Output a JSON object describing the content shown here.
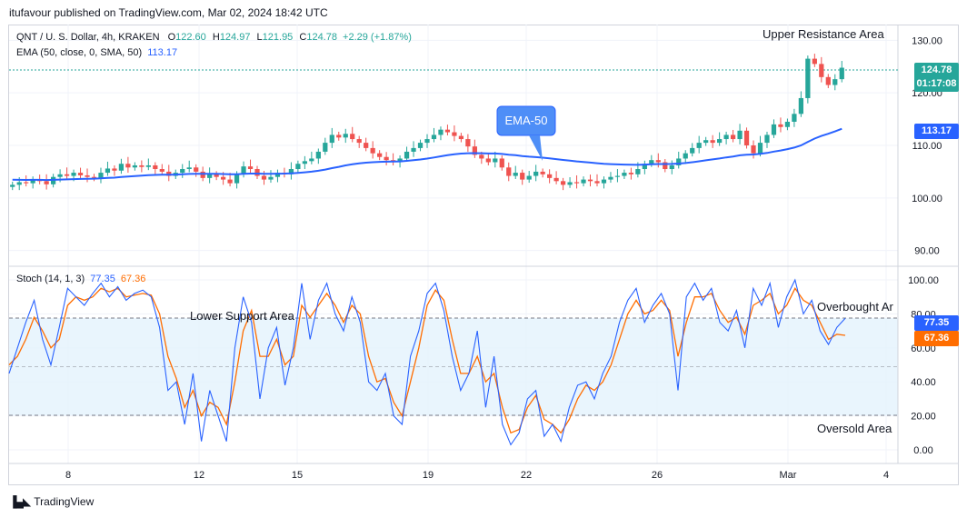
{
  "header": {
    "text": "itufavour published on TradingView.com, Mar 02, 2024 18:42 UTC"
  },
  "legend_main": {
    "symbol": "QNT / U. S. Dollar, 4h, KRAKEN",
    "o_label": "O",
    "o": "122.60",
    "h_label": "H",
    "h": "124.97",
    "l_label": "L",
    "l": "121.95",
    "c_label": "C",
    "c": "124.78",
    "change": "+2.29 (+1.87%)",
    "ema_label": "EMA (50, close, 0, SMA, 50)",
    "ema_value": "113.17"
  },
  "legend_stoch": {
    "label": "Stoch (14, 1, 3)",
    "k": "77.35",
    "d": "67.36"
  },
  "price_badge": {
    "price": "124.78",
    "countdown": "01:17:08"
  },
  "ema_badge": "113.17",
  "stoch_badges": {
    "k": "77.35",
    "d": "67.36"
  },
  "annotations": {
    "upper_resistance": "Upper Resistance Area",
    "lower_support": "Lower Support Area",
    "ema_callout": "EMA-50",
    "overbought": "Overbought Ar",
    "oversold": "Oversold Area"
  },
  "footer": {
    "brand": "TradingView"
  },
  "colors": {
    "up": "#26a69a",
    "down": "#ef5350",
    "ema": "#2962ff",
    "k": "#2962ff",
    "d": "#ff6d00",
    "band": "#e3f2fd",
    "callout": "#4e8ef7"
  },
  "chart_data": [
    {
      "type": "candlestick",
      "title": "QNT / U. S. Dollar, 4h, KRAKEN",
      "x_ticks": [
        "8",
        "12",
        "15",
        "19",
        "22",
        "26",
        "Mar",
        "4"
      ],
      "y_ticks": [
        90,
        100,
        110,
        120,
        130
      ],
      "ylim": [
        87,
        133
      ],
      "grid": true,
      "last_price": 124.78,
      "ema50_last": 113.17,
      "series": [
        {
          "name": "QNT / U. S. Dollar",
          "ohlc_close": [
            102.5,
            103.0,
            102.8,
            103.5,
            103.2,
            102.6,
            104.0,
            104.5,
            104.2,
            104.8,
            104.3,
            104.0,
            103.8,
            104.8,
            105.6,
            105.2,
            106.5,
            105.8,
            106.2,
            105.9,
            106.2,
            105.5,
            105.0,
            104.2,
            104.8,
            105.5,
            105.8,
            105.0,
            103.8,
            104.5,
            104.0,
            103.5,
            102.8,
            104.5,
            106.0,
            105.5,
            104.2,
            103.5,
            104.0,
            104.8,
            104.5,
            105.5,
            106.5,
            107.0,
            107.5,
            108.8,
            110.5,
            112.0,
            111.5,
            112.2,
            111.2,
            110.5,
            109.5,
            108.5,
            107.8,
            107.2,
            106.8,
            107.5,
            108.8,
            109.5,
            110.5,
            111.2,
            112.0,
            113.0,
            112.5,
            111.8,
            111.2,
            109.8,
            108.2,
            107.5,
            106.8,
            107.5,
            105.8,
            104.2,
            104.8,
            103.5,
            104.2,
            105.0,
            104.5,
            103.8,
            103.2,
            102.5,
            103.0,
            102.8,
            103.5,
            103.2,
            102.8,
            103.5,
            104.0,
            104.2,
            104.8,
            104.5,
            105.5,
            106.5,
            107.2,
            106.8,
            105.5,
            106.2,
            107.5,
            108.5,
            109.5,
            110.5,
            111.0,
            110.5,
            111.2,
            112.0,
            111.2,
            112.8,
            110.0,
            108.5,
            110.5,
            112.0,
            114.0,
            113.5,
            114.5,
            116.0,
            119.0,
            126.5,
            125.5,
            123.0,
            121.5,
            122.6,
            124.78
          ]
        },
        {
          "name": "EMA (50, close, 0, SMA, 50)",
          "last": 113.17
        }
      ]
    },
    {
      "type": "line",
      "title": "Stoch (14, 1, 3)",
      "x_ticks": [
        "8",
        "12",
        "15",
        "19",
        "22",
        "26",
        "Mar",
        "4"
      ],
      "y_ticks": [
        0,
        20,
        40,
        60,
        80,
        100
      ],
      "ylim": [
        -8,
        108
      ],
      "guides": [
        20,
        50,
        80
      ],
      "series": [
        {
          "name": "%K",
          "values": [
            45,
            60,
            75,
            88,
            65,
            50,
            72,
            95,
            90,
            85,
            92,
            98,
            90,
            96,
            88,
            92,
            94,
            90,
            72,
            35,
            40,
            15,
            45,
            5,
            35,
            20,
            5,
            60,
            90,
            75,
            30,
            60,
            72,
            38,
            60,
            98,
            65,
            88,
            98,
            80,
            70,
            90,
            75,
            40,
            35,
            45,
            20,
            15,
            55,
            70,
            92,
            98,
            82,
            55,
            35,
            45,
            70,
            25,
            55,
            15,
            3,
            10,
            30,
            35,
            8,
            15,
            5,
            25,
            38,
            40,
            30,
            45,
            55,
            75,
            88,
            95,
            75,
            85,
            92,
            80,
            35,
            90,
            98,
            88,
            95,
            75,
            70,
            82,
            60,
            95,
            85,
            98,
            72,
            90,
            100,
            80,
            88,
            70,
            62,
            72,
            77.35
          ]
        },
        {
          "name": "%D",
          "values": [
            50,
            55,
            65,
            78,
            70,
            60,
            65,
            85,
            90,
            88,
            90,
            95,
            93,
            95,
            90,
            91,
            92,
            91,
            80,
            55,
            42,
            25,
            35,
            20,
            28,
            25,
            15,
            40,
            70,
            82,
            55,
            55,
            65,
            50,
            55,
            85,
            78,
            85,
            92,
            85,
            75,
            85,
            80,
            55,
            40,
            42,
            28,
            20,
            40,
            60,
            85,
            94,
            88,
            65,
            45,
            45,
            55,
            40,
            45,
            25,
            10,
            12,
            25,
            32,
            18,
            15,
            10,
            18,
            30,
            38,
            35,
            40,
            50,
            65,
            80,
            88,
            80,
            82,
            88,
            82,
            55,
            75,
            90,
            90,
            92,
            82,
            75,
            78,
            68,
            85,
            88,
            92,
            80,
            85,
            95,
            88,
            85,
            75,
            65,
            68,
            67.36
          ]
        }
      ]
    }
  ]
}
